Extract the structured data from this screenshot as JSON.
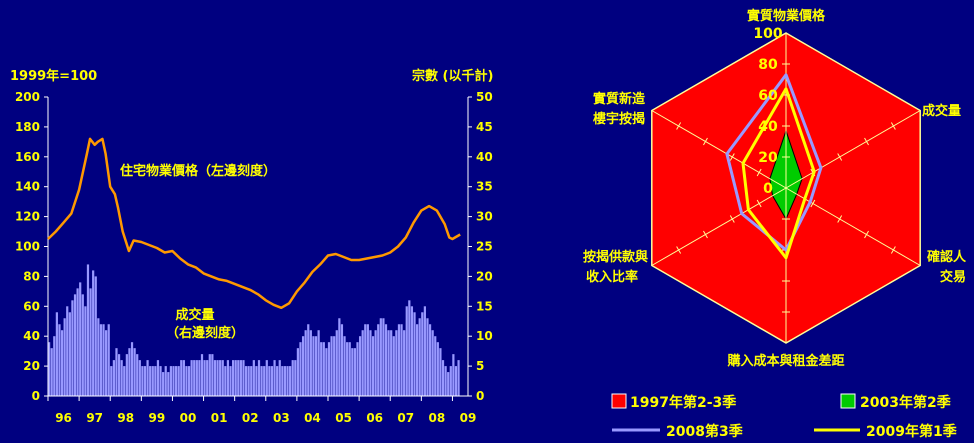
{
  "chart_data": [
    {
      "type": "line+bar",
      "left_axis_label": "1999年=100",
      "right_axis_label": "宗數 (以千計)",
      "left_ylim": [
        0,
        200
      ],
      "right_ylim": [
        0,
        50
      ],
      "left_ticks": [
        0,
        20,
        40,
        60,
        80,
        100,
        120,
        140,
        160,
        180,
        200
      ],
      "right_ticks": [
        0,
        5,
        10,
        15,
        20,
        25,
        30,
        35,
        40,
        45,
        50
      ],
      "x_tick_labels": [
        "96",
        "97",
        "98",
        "99",
        "00",
        "01",
        "02",
        "03",
        "04",
        "05",
        "06",
        "07",
        "08",
        "09"
      ],
      "x_start_year": 1996,
      "x_end": 2009.5,
      "line_series": {
        "name": "住宅物業價格（左邊刻度）",
        "color": "#FF9900",
        "points": [
          [
            1996.0,
            105
          ],
          [
            1996.25,
            110
          ],
          [
            1996.5,
            116
          ],
          [
            1996.75,
            122
          ],
          [
            1997.0,
            138
          ],
          [
            1997.25,
            162
          ],
          [
            1997.35,
            172
          ],
          [
            1997.5,
            168
          ],
          [
            1997.6,
            170
          ],
          [
            1997.75,
            172
          ],
          [
            1997.85,
            162
          ],
          [
            1998.0,
            140
          ],
          [
            1998.15,
            135
          ],
          [
            1998.25,
            126
          ],
          [
            1998.4,
            110
          ],
          [
            1998.6,
            97
          ],
          [
            1998.75,
            104
          ],
          [
            1999.0,
            103
          ],
          [
            1999.25,
            101
          ],
          [
            1999.5,
            99
          ],
          [
            1999.75,
            96
          ],
          [
            2000.0,
            97
          ],
          [
            2000.25,
            92
          ],
          [
            2000.5,
            88
          ],
          [
            2000.75,
            86
          ],
          [
            2001.0,
            82
          ],
          [
            2001.25,
            80
          ],
          [
            2001.5,
            78
          ],
          [
            2001.75,
            77
          ],
          [
            2002.0,
            75
          ],
          [
            2002.25,
            73
          ],
          [
            2002.5,
            71
          ],
          [
            2002.75,
            68
          ],
          [
            2003.0,
            64
          ],
          [
            2003.25,
            61
          ],
          [
            2003.5,
            59
          ],
          [
            2003.75,
            62
          ],
          [
            2004.0,
            70
          ],
          [
            2004.25,
            76
          ],
          [
            2004.5,
            83
          ],
          [
            2004.75,
            88
          ],
          [
            2005.0,
            94
          ],
          [
            2005.25,
            95
          ],
          [
            2005.5,
            93
          ],
          [
            2005.75,
            91
          ],
          [
            2006.0,
            91
          ],
          [
            2006.25,
            92
          ],
          [
            2006.5,
            93
          ],
          [
            2006.75,
            94
          ],
          [
            2007.0,
            96
          ],
          [
            2007.25,
            100
          ],
          [
            2007.5,
            106
          ],
          [
            2007.75,
            116
          ],
          [
            2008.0,
            124
          ],
          [
            2008.25,
            127
          ],
          [
            2008.5,
            124
          ],
          [
            2008.75,
            115
          ],
          [
            2008.9,
            106
          ],
          [
            2009.0,
            105
          ],
          [
            2009.25,
            108
          ]
        ]
      },
      "bar_series": {
        "name": "成交量 （右邊刻度）",
        "color": "#9999FF",
        "start": 1996.0,
        "step": 0.0833,
        "values": [
          9,
          8,
          10,
          14,
          12,
          11,
          13,
          15,
          14,
          16,
          17,
          18,
          19,
          17,
          15,
          22,
          18,
          21,
          20,
          13,
          12,
          12,
          11,
          12,
          5,
          6,
          8,
          7,
          6,
          5,
          7,
          8,
          9,
          8,
          7,
          6,
          5,
          5,
          6,
          5,
          5,
          5,
          6,
          5,
          4,
          5,
          4,
          5,
          5,
          5,
          5,
          6,
          6,
          5,
          5,
          6,
          6,
          6,
          6,
          7,
          6,
          6,
          7,
          7,
          6,
          6,
          6,
          6,
          5,
          6,
          5,
          6,
          6,
          6,
          6,
          6,
          5,
          5,
          5,
          6,
          5,
          6,
          5,
          5,
          6,
          5,
          5,
          6,
          5,
          6,
          5,
          5,
          5,
          5,
          6,
          6,
          8,
          9,
          10,
          11,
          12,
          11,
          10,
          10,
          11,
          9,
          9,
          8,
          9,
          10,
          10,
          11,
          13,
          12,
          10,
          9,
          9,
          8,
          8,
          9,
          10,
          11,
          12,
          12,
          11,
          10,
          11,
          12,
          13,
          13,
          12,
          11,
          11,
          10,
          11,
          12,
          12,
          11,
          15,
          16,
          15,
          14,
          12,
          13,
          14,
          15,
          13,
          12,
          11,
          10,
          9,
          8,
          6,
          5,
          4,
          5,
          7,
          5,
          6
        ]
      },
      "annotations": [
        "住宅物業價格（左邊刻度）",
        "成交量",
        "（右邊刻度）"
      ]
    },
    {
      "type": "radar",
      "axes": [
        "實質物業價格",
        "成交量",
        "確認人交易",
        "購入成本與租金差距",
        "按揭供款與收入比率",
        "實質新造樓宇按揭"
      ],
      "range": [
        0,
        100
      ],
      "ticks": [
        0,
        20,
        40,
        60,
        80,
        100
      ],
      "series": [
        {
          "name": "1997年第2-3季",
          "color": "#FF0000",
          "style": "fill",
          "values": [
            100,
            100,
            100,
            100,
            100,
            100
          ]
        },
        {
          "name": "2003年第2季",
          "color": "#00CC00",
          "style": "fill",
          "values": [
            37,
            12,
            8,
            20,
            10,
            12
          ]
        },
        {
          "name": "2008第3季",
          "color": "#9999FF",
          "style": "line",
          "values": [
            73,
            26,
            18,
            40,
            33,
            44
          ]
        },
        {
          "name": "2009年第1季",
          "color": "#FFFF00",
          "style": "line",
          "values": [
            64,
            21,
            14,
            45,
            28,
            32
          ]
        }
      ]
    }
  ],
  "legend": {
    "items": [
      {
        "label": "1997年第2-3季",
        "color": "#FF0000",
        "kind": "box"
      },
      {
        "label": "2003年第2季",
        "color": "#00CC00",
        "kind": "box"
      },
      {
        "label": "2008第3季",
        "color": "#9999FF",
        "kind": "line"
      },
      {
        "label": "2009年第1季",
        "color": "#FFFF00",
        "kind": "line"
      }
    ]
  },
  "radar_labels": {
    "top": "實質物業價格",
    "right_upper": "成交量",
    "right_lower_1": "確認人",
    "right_lower_2": "交易",
    "bottom": "購入成本與租金差距",
    "left_lower_1": "按揭供款與",
    "left_lower_2": "收入比率",
    "left_upper_1": "實質新造",
    "left_upper_2": "樓宇按揭"
  }
}
